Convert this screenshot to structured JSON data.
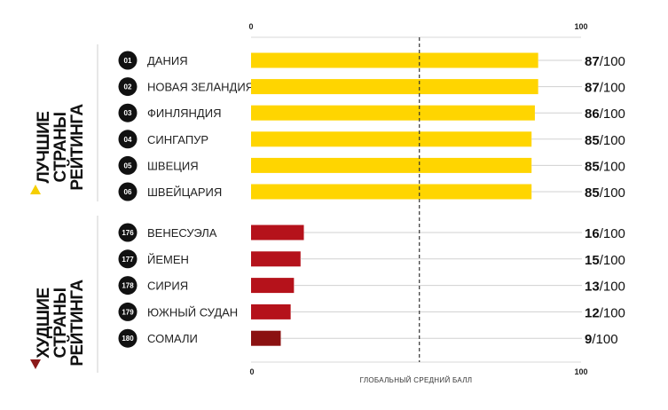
{
  "chart_data": {
    "type": "bar",
    "orientation": "horizontal",
    "xlim": [
      0,
      100
    ],
    "x_ticks": [
      "0",
      "100"
    ],
    "xlabel": "ГЛОБАЛЬНЫЙ СРЕДНИЙ БАЛЛ",
    "score_suffix": "/100",
    "groups": [
      {
        "title": [
          "ЛУЧШИЕ",
          "СТРАНЫ",
          "РЕЙТИНГА"
        ],
        "marker": "up-triangle",
        "marker_color": "#F5CE00",
        "items": [
          {
            "rank": "01",
            "country": "ДАНИЯ",
            "value": 87,
            "color": "#FFD500"
          },
          {
            "rank": "02",
            "country": "НОВАЯ ЗЕЛАНДИЯ",
            "value": 87,
            "color": "#FFD500"
          },
          {
            "rank": "03",
            "country": "ФИНЛЯНДИЯ",
            "value": 86,
            "color": "#FFD500"
          },
          {
            "rank": "04",
            "country": "СИНГАПУР",
            "value": 85,
            "color": "#FFD500"
          },
          {
            "rank": "05",
            "country": "ШВЕЦИЯ",
            "value": 85,
            "color": "#FFD500"
          },
          {
            "rank": "06",
            "country": "ШВЕЙЦАРИЯ",
            "value": 85,
            "color": "#FFD500"
          }
        ]
      },
      {
        "title": [
          "ХУДШИЕ",
          "СТРАНЫ",
          "РЕЙТИНГА"
        ],
        "marker": "down-triangle",
        "marker_color": "#8B1A1A",
        "items": [
          {
            "rank": "176",
            "country": "ВЕНЕСУЭЛА",
            "value": 16,
            "color": "#B5121B"
          },
          {
            "rank": "177",
            "country": "ЙЕМЕН",
            "value": 15,
            "color": "#B5121B"
          },
          {
            "rank": "178",
            "country": "СИРИЯ",
            "value": 13,
            "color": "#B5121B"
          },
          {
            "rank": "179",
            "country": "ЮЖНЫЙ СУДАН",
            "value": 12,
            "color": "#B5121B"
          },
          {
            "rank": "180",
            "country": "СОМАЛИ",
            "value": 9,
            "color": "#8B1111"
          }
        ]
      }
    ],
    "average_line_value": 51
  }
}
